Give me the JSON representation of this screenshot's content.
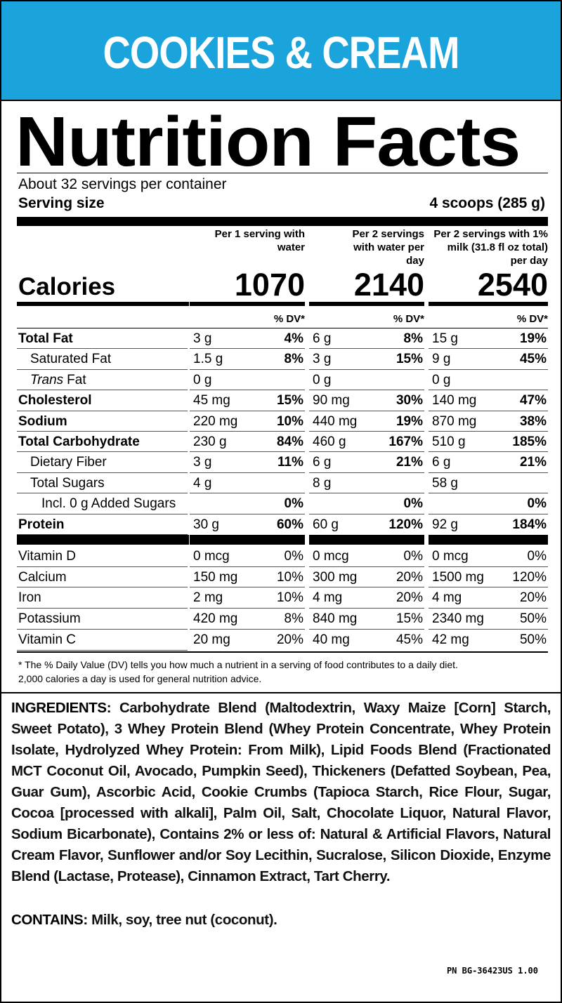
{
  "banner": "COOKIES & CREAM",
  "title": "Nutrition Facts",
  "servings": "About 32 servings per container",
  "serving_size": {
    "label": "Serving size",
    "value": "4 scoops (285 g)"
  },
  "columns": [
    "Per 1 serving with water",
    "Per 2 servings with water per day",
    "Per 2 servings with 1% milk (31.8 fl oz total) per day"
  ],
  "calories": {
    "label": "Calories",
    "values": [
      "1070",
      "2140",
      "2540"
    ]
  },
  "dv_header": "% DV*",
  "nutrients": [
    {
      "name": "Total Fat",
      "cells": [
        {
          "amount": "3 g",
          "dv": "4%"
        },
        {
          "amount": "6 g",
          "dv": "8%"
        },
        {
          "amount": "15 g",
          "dv": "19%"
        }
      ]
    },
    {
      "name": "Saturated Fat",
      "cells": [
        {
          "amount": "1.5 g",
          "dv": "8%"
        },
        {
          "amount": "3 g",
          "dv": "15%"
        },
        {
          "amount": "9 g",
          "dv": "45%"
        }
      ]
    },
    {
      "name_italic": "Trans",
      "name": "Fat",
      "cells": [
        {
          "amount": "0 g"
        },
        {
          "amount": "0 g"
        },
        {
          "amount": "0 g"
        }
      ]
    },
    {
      "name": "Cholesterol",
      "cells": [
        {
          "amount": "45 mg",
          "dv": "15%"
        },
        {
          "amount": "90 mg",
          "dv": "30%"
        },
        {
          "amount": "140 mg",
          "dv": "47%"
        }
      ]
    },
    {
      "name": "Sodium",
      "cells": [
        {
          "amount": "220 mg",
          "dv": "10%"
        },
        {
          "amount": "440 mg",
          "dv": "19%"
        },
        {
          "amount": "870 mg",
          "dv": "38%"
        }
      ]
    },
    {
      "name": "Total Carbohydrate",
      "cells": [
        {
          "amount": "230 g",
          "dv": "84%"
        },
        {
          "amount": "460 g",
          "dv": "167%"
        },
        {
          "amount": "510 g",
          "dv": "185%"
        }
      ]
    },
    {
      "name": "Dietary Fiber",
      "cells": [
        {
          "amount": "3 g",
          "dv": "11%"
        },
        {
          "amount": "6 g",
          "dv": "21%"
        },
        {
          "amount": "6 g",
          "dv": "21%"
        }
      ]
    },
    {
      "name": "Total Sugars",
      "cells": [
        {
          "amount": "4 g"
        },
        {
          "amount": "8 g"
        },
        {
          "amount": "58 g"
        }
      ]
    },
    {
      "name": "Incl. 0 g Added Sugars",
      "cells": [
        {
          "dv": "0%"
        },
        {
          "dv": "0%"
        },
        {
          "dv": "0%"
        }
      ]
    },
    {
      "name": "Protein",
      "cells": [
        {
          "amount": "30 g",
          "dv": "60%"
        },
        {
          "amount": "60 g",
          "dv": "120%"
        },
        {
          "amount": "92 g",
          "dv": "184%"
        }
      ]
    }
  ],
  "vitamins": [
    {
      "name": "Vitamin D",
      "cells": [
        {
          "amount": "0 mcg",
          "dv": "0%"
        },
        {
          "amount": "0 mcg",
          "dv": "0%"
        },
        {
          "amount": "0 mcg",
          "dv": "0%"
        }
      ]
    },
    {
      "name": "Calcium",
      "cells": [
        {
          "amount": "150 mg",
          "dv": "10%"
        },
        {
          "amount": "300 mg",
          "dv": "20%"
        },
        {
          "amount": "1500 mg",
          "dv": "120%"
        }
      ]
    },
    {
      "name": "Iron",
      "cells": [
        {
          "amount": "2 mg",
          "dv": "10%"
        },
        {
          "amount": "4 mg",
          "dv": "20%"
        },
        {
          "amount": "4 mg",
          "dv": "20%"
        }
      ]
    },
    {
      "name": "Potassium",
      "cells": [
        {
          "amount": "420 mg",
          "dv": "8%"
        },
        {
          "amount": "840 mg",
          "dv": "15%"
        },
        {
          "amount": "2340 mg",
          "dv": "50%"
        }
      ]
    },
    {
      "name": "Vitamin C",
      "cells": [
        {
          "amount": "20 mg",
          "dv": "20%"
        },
        {
          "amount": "40 mg",
          "dv": "45%"
        },
        {
          "amount": "42 mg",
          "dv": "50%"
        }
      ]
    }
  ],
  "footnote": [
    "* The % Daily Value (DV) tells you how much a nutrient in a serving of food contributes to a daily diet.",
    "2,000 calories a day is used for general nutrition advice."
  ],
  "ingredients": {
    "label": "INGREDIENTS:",
    "text": "Carbohydrate Blend (Maltodextrin, Waxy Maize [Corn] Starch, Sweet Potato), 3 Whey Protein Blend (Whey Protein Concentrate, Whey Protein Isolate, Hydrolyzed Whey Protein: From Milk), Lipid Foods Blend (Fractionated MCT Coconut Oil, Avocado, Pumpkin Seed), Thickeners (Defatted Soybean, Pea, Guar Gum), Ascorbic Acid, Cookie Crumbs (Tapioca Starch, Rice Flour, Sugar, Cocoa [processed with alkali], Palm Oil, Salt, Chocolate Liquor, Natural Flavor, Sodium Bicarbonate), Contains 2% or less of: Natural & Artificial Flavors, Natural Cream Flavor, Sunflower and/or Soy Lecithin, Sucralose, Silicon Dioxide, Enzyme Blend (Lactase, Protease), Cinnamon Extract, Tart Cherry."
  },
  "contains": {
    "label": "CONTAINS:",
    "text": "Milk, soy, tree nut (coconut)."
  },
  "part_number": "PN BG-36423US 1.00"
}
